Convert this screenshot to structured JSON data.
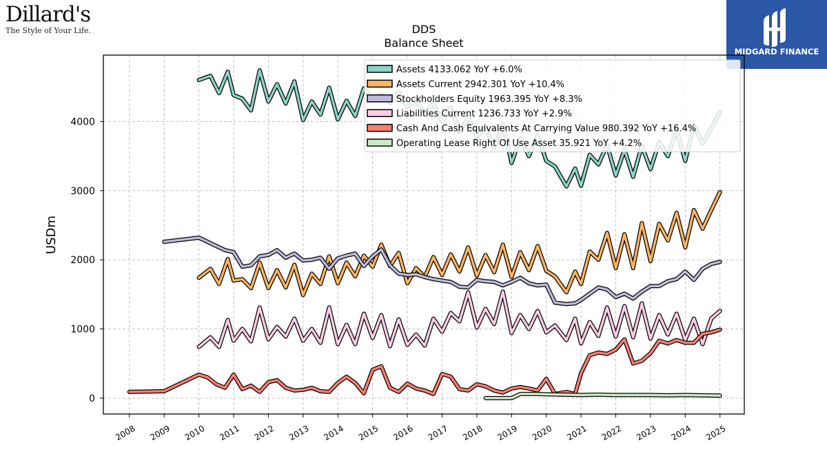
{
  "logos": {
    "left_brand": "Dillard's",
    "left_tagline": "The Style of Your Life.",
    "right_brand": "MIDGARD FINANCE"
  },
  "chart_data": {
    "type": "line",
    "title": "DDS",
    "subtitle": "Balance  Sheet",
    "ylabel": "USDm",
    "xlabel": "",
    "xlim": [
      2007.25,
      2025.7
    ],
    "ylim": [
      -230,
      4960
    ],
    "yticks": [
      0,
      1000,
      2000,
      3000,
      4000
    ],
    "xticks": [
      2008,
      2009,
      2010,
      2011,
      2012,
      2013,
      2014,
      2015,
      2016,
      2017,
      2018,
      2019,
      2020,
      2021,
      2022,
      2023,
      2024,
      2025
    ],
    "grid": true,
    "legend_position": "top-right",
    "series": [
      {
        "name": "Assets",
        "legend": "Assets  4133.062 YoY +6.0%",
        "color": "#8dd3c7",
        "x": [
          2010.0,
          2010.33,
          2010.58,
          2010.83,
          2011.0,
          2011.25,
          2011.5,
          2011.75,
          2012.0,
          2012.25,
          2012.5,
          2012.75,
          2013.0,
          2013.25,
          2013.5,
          2013.75,
          2014.0,
          2014.25,
          2014.5,
          2014.75,
          2015.0,
          2015.25,
          2015.5,
          2015.75,
          2016.0,
          2016.25,
          2016.5,
          2016.75,
          2017.0,
          2017.25,
          2017.5,
          2017.75,
          2018.0,
          2018.25,
          2018.5,
          2018.75,
          2019.0,
          2019.25,
          2019.5,
          2019.75,
          2020.0,
          2020.25,
          2020.58,
          2020.83,
          2021.0,
          2021.25,
          2021.5,
          2021.75,
          2022.0,
          2022.25,
          2022.5,
          2022.75,
          2023.0,
          2023.25,
          2023.5,
          2023.75,
          2024.0,
          2024.25,
          2024.5,
          2024.75,
          2025.0
        ],
        "values": [
          4600,
          4660,
          4410,
          4720,
          4380,
          4330,
          4160,
          4740,
          4290,
          4540,
          4260,
          4580,
          4020,
          4290,
          4100,
          4490,
          4030,
          4300,
          4080,
          4480,
          4320,
          4390,
          4270,
          4430,
          4210,
          4300,
          4120,
          4260,
          4000,
          4200,
          3850,
          4060,
          3780,
          3920,
          3620,
          3960,
          3400,
          3760,
          3500,
          3800,
          3430,
          3350,
          3060,
          3320,
          3070,
          3520,
          3380,
          3660,
          3220,
          3590,
          3200,
          3650,
          3310,
          3700,
          3500,
          3880,
          3430,
          3950,
          3680,
          3900,
          4140
        ]
      },
      {
        "name": "Assets Current",
        "legend": "Assets Current  2942.301 YoY +10.4%",
        "color": "#fdb462",
        "x": [
          2010.0,
          2010.33,
          2010.58,
          2010.83,
          2011.0,
          2011.25,
          2011.5,
          2011.75,
          2012.0,
          2012.25,
          2012.5,
          2012.75,
          2013.0,
          2013.25,
          2013.5,
          2013.75,
          2014.0,
          2014.25,
          2014.5,
          2014.75,
          2015.0,
          2015.25,
          2015.5,
          2015.75,
          2016.0,
          2016.25,
          2016.5,
          2016.75,
          2017.0,
          2017.25,
          2017.5,
          2017.75,
          2018.0,
          2018.25,
          2018.5,
          2018.75,
          2019.0,
          2019.25,
          2019.5,
          2019.75,
          2020.0,
          2020.25,
          2020.58,
          2020.83,
          2021.0,
          2021.25,
          2021.5,
          2021.75,
          2022.0,
          2022.25,
          2022.5,
          2022.75,
          2023.0,
          2023.25,
          2023.5,
          2023.75,
          2024.0,
          2024.25,
          2024.5,
          2024.75,
          2025.0
        ],
        "values": [
          1740,
          1870,
          1650,
          2010,
          1700,
          1720,
          1590,
          1960,
          1590,
          1850,
          1600,
          1930,
          1490,
          1800,
          1650,
          2050,
          1660,
          1960,
          1760,
          2060,
          1900,
          2220,
          1910,
          2100,
          1660,
          1880,
          1750,
          2040,
          1780,
          2080,
          1830,
          2180,
          1770,
          2070,
          1820,
          2220,
          1750,
          2110,
          1850,
          2200,
          1840,
          1760,
          1530,
          1830,
          1650,
          2120,
          2000,
          2390,
          1880,
          2370,
          1880,
          2530,
          1980,
          2520,
          2280,
          2680,
          2180,
          2720,
          2450,
          2720,
          2980
        ]
      },
      {
        "name": "Stockholders Equity",
        "legend": "Stockholders Equity  1963.395 YoY +8.3%",
        "color": "#bebada",
        "x": [
          2009.0,
          2010.0,
          2010.5,
          2010.75,
          2011.0,
          2011.25,
          2011.5,
          2011.75,
          2012.0,
          2012.25,
          2012.5,
          2012.75,
          2013.0,
          2013.25,
          2013.5,
          2013.75,
          2014.0,
          2014.25,
          2014.5,
          2014.75,
          2015.0,
          2015.25,
          2015.5,
          2015.75,
          2016.0,
          2016.25,
          2016.5,
          2016.75,
          2017.0,
          2017.25,
          2017.5,
          2017.75,
          2018.0,
          2018.25,
          2018.5,
          2018.75,
          2019.0,
          2019.25,
          2019.5,
          2019.75,
          2020.0,
          2020.25,
          2020.58,
          2020.83,
          2021.0,
          2021.25,
          2021.5,
          2021.75,
          2022.0,
          2022.25,
          2022.5,
          2022.75,
          2023.0,
          2023.25,
          2023.5,
          2023.75,
          2024.0,
          2024.25,
          2024.5,
          2024.75,
          2025.0
        ],
        "values": [
          2260,
          2320,
          2200,
          2140,
          2110,
          1900,
          1920,
          2050,
          2070,
          2140,
          2030,
          2090,
          1990,
          2000,
          2030,
          1870,
          2020,
          2060,
          2090,
          1910,
          2050,
          2150,
          1920,
          1800,
          1780,
          1790,
          1750,
          1720,
          1700,
          1680,
          1610,
          1600,
          1710,
          1690,
          1680,
          1630,
          1680,
          1740,
          1660,
          1630,
          1640,
          1380,
          1360,
          1370,
          1420,
          1510,
          1600,
          1570,
          1460,
          1510,
          1440,
          1540,
          1620,
          1620,
          1690,
          1720,
          1830,
          1710,
          1870,
          1940,
          1970
        ]
      },
      {
        "name": "Liabilities Current",
        "legend": "Liabilities Current  1236.733 YoY +2.9%",
        "color": "#fccde5",
        "x": [
          2010.0,
          2010.33,
          2010.58,
          2010.83,
          2011.0,
          2011.25,
          2011.5,
          2011.75,
          2012.0,
          2012.25,
          2012.5,
          2012.75,
          2013.0,
          2013.25,
          2013.5,
          2013.75,
          2014.0,
          2014.25,
          2014.5,
          2014.75,
          2015.0,
          2015.25,
          2015.5,
          2015.75,
          2016.0,
          2016.25,
          2016.5,
          2016.75,
          2017.0,
          2017.25,
          2017.5,
          2017.75,
          2018.0,
          2018.25,
          2018.5,
          2018.75,
          2019.0,
          2019.25,
          2019.5,
          2019.75,
          2020.0,
          2020.25,
          2020.58,
          2020.83,
          2021.0,
          2021.25,
          2021.5,
          2021.75,
          2022.0,
          2022.25,
          2022.5,
          2022.75,
          2023.0,
          2023.25,
          2023.5,
          2023.75,
          2024.0,
          2024.25,
          2024.5,
          2024.75,
          2025.0
        ],
        "values": [
          740,
          880,
          740,
          1130,
          830,
          1000,
          820,
          1310,
          850,
          1030,
          890,
          1150,
          830,
          1000,
          800,
          1310,
          780,
          1060,
          780,
          1220,
          870,
          1200,
          750,
          1140,
          770,
          920,
          760,
          1150,
          960,
          1230,
          1110,
          1530,
          1020,
          1290,
          1070,
          1540,
          940,
          1200,
          1000,
          1260,
          950,
          1050,
          840,
          1150,
          790,
          1100,
          900,
          1310,
          890,
          1330,
          880,
          1370,
          860,
          1200,
          920,
          1220,
          840,
          1150,
          780,
          1150,
          1260
        ]
      },
      {
        "name": "Cash And Cash Equivalents At Carrying Value",
        "legend": "Cash And Cash Equivalents At Carrying Value  980.392 YoY +16.4%",
        "color": "#fb8072",
        "x": [
          2008.0,
          2009.0,
          2010.0,
          2010.25,
          2010.5,
          2010.75,
          2011.0,
          2011.25,
          2011.5,
          2011.75,
          2012.0,
          2012.25,
          2012.5,
          2012.75,
          2013.0,
          2013.25,
          2013.5,
          2013.75,
          2014.0,
          2014.25,
          2014.5,
          2014.75,
          2015.0,
          2015.25,
          2015.5,
          2015.75,
          2016.0,
          2016.25,
          2016.5,
          2016.75,
          2017.0,
          2017.25,
          2017.5,
          2017.75,
          2018.0,
          2018.25,
          2018.5,
          2018.75,
          2019.0,
          2019.25,
          2019.5,
          2019.75,
          2020.0,
          2020.25,
          2020.58,
          2020.83,
          2021.0,
          2021.25,
          2021.5,
          2021.75,
          2022.0,
          2022.25,
          2022.5,
          2022.75,
          2023.0,
          2023.25,
          2023.5,
          2023.75,
          2024.0,
          2024.25,
          2024.5,
          2024.75,
          2025.0
        ],
        "values": [
          90,
          100,
          340,
          300,
          200,
          150,
          340,
          130,
          180,
          90,
          230,
          260,
          150,
          110,
          120,
          150,
          100,
          90,
          220,
          310,
          220,
          70,
          410,
          460,
          150,
          90,
          210,
          140,
          110,
          60,
          350,
          310,
          130,
          110,
          200,
          170,
          110,
          80,
          140,
          160,
          140,
          110,
          280,
          60,
          90,
          60,
          360,
          620,
          660,
          640,
          700,
          850,
          500,
          540,
          650,
          830,
          790,
          840,
          800,
          800,
          930,
          950,
          990
        ]
      },
      {
        "name": "Operating Lease Right Of Use Asset",
        "legend": "Operating Lease Right Of Use Asset  35.921 YoY +4.2%",
        "color": "#ccebc5",
        "x": [
          2018.25,
          2019.0,
          2019.25,
          2019.75,
          2020.0,
          2020.5,
          2021.0,
          2021.5,
          2022.0,
          2022.5,
          2023.0,
          2023.5,
          2024.0,
          2024.5,
          2025.0
        ],
        "values": [
          0,
          0,
          60,
          60,
          55,
          50,
          45,
          50,
          45,
          45,
          45,
          40,
          45,
          40,
          36
        ]
      }
    ]
  }
}
